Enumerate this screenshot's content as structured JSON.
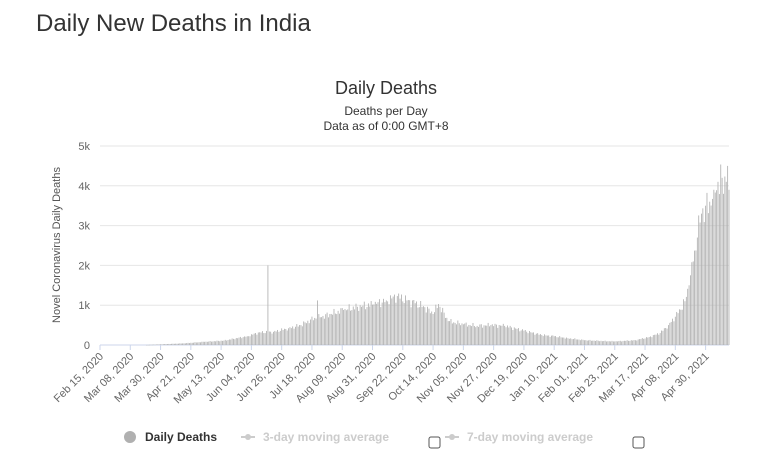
{
  "page": {
    "heading": "Daily New Deaths in India"
  },
  "chart_data": {
    "type": "bar",
    "title": "Daily Deaths",
    "subtitle_lines": [
      "Deaths per Day",
      "Data as of 0:00 GMT+8"
    ],
    "ylabel": "Novel Coronavirus Daily Deaths",
    "ylim": [
      0,
      5000
    ],
    "yticks": [
      0,
      1000,
      2000,
      3000,
      4000,
      5000
    ],
    "ytick_labels": [
      "0",
      "1k",
      "2k",
      "3k",
      "4k",
      "5k"
    ],
    "x_start": "2020-02-15",
    "x_end": "2021-05-17",
    "xtick_dates": [
      "2020-02-15",
      "2020-03-08",
      "2020-03-30",
      "2020-04-21",
      "2020-05-13",
      "2020-06-04",
      "2020-06-26",
      "2020-07-18",
      "2020-08-09",
      "2020-08-31",
      "2020-09-22",
      "2020-10-14",
      "2020-11-05",
      "2020-11-27",
      "2020-12-19",
      "2021-01-10",
      "2021-02-01",
      "2021-02-23",
      "2021-03-17",
      "2021-04-08",
      "2021-04-30"
    ],
    "xtick_labels": [
      "Feb 15, 2020",
      "Mar 08, 2020",
      "Mar 30, 2020",
      "Apr 21, 2020",
      "May 13, 2020",
      "Jun 04, 2020",
      "Jun 26, 2020",
      "Jul 18, 2020",
      "Aug 09, 2020",
      "Aug 31, 2020",
      "Sep 22, 2020",
      "Oct 14, 2020",
      "Nov 05, 2020",
      "Nov 27, 2020",
      "Dec 19, 2020",
      "Jan 10, 2021",
      "Feb 01, 2021",
      "Feb 23, 2021",
      "Mar 17, 2021",
      "Apr 08, 2021",
      "Apr 30, 2021"
    ],
    "series": [
      {
        "name": "Daily Deaths",
        "color": "#b0b0b0",
        "points": [
          [
            "2020-03-20",
            2
          ],
          [
            "2020-04-01",
            20
          ],
          [
            "2020-04-15",
            40
          ],
          [
            "2020-05-01",
            80
          ],
          [
            "2020-05-15",
            110
          ],
          [
            "2020-06-01",
            220
          ],
          [
            "2020-06-10",
            320
          ],
          [
            "2020-06-16",
            2000
          ],
          [
            "2020-06-20",
            330
          ],
          [
            "2020-07-01",
            420
          ],
          [
            "2020-07-10",
            500
          ],
          [
            "2020-07-20",
            680
          ],
          [
            "2020-07-22",
            1120
          ],
          [
            "2020-07-25",
            700
          ],
          [
            "2020-08-01",
            780
          ],
          [
            "2020-08-10",
            880
          ],
          [
            "2020-08-20",
            960
          ],
          [
            "2020-09-01",
            1020
          ],
          [
            "2020-09-10",
            1120
          ],
          [
            "2020-09-18",
            1230
          ],
          [
            "2020-09-25",
            1120
          ],
          [
            "2020-10-01",
            1050
          ],
          [
            "2020-10-08",
            950
          ],
          [
            "2020-10-14",
            780
          ],
          [
            "2020-10-18",
            1030
          ],
          [
            "2020-10-25",
            600
          ],
          [
            "2020-11-05",
            520
          ],
          [
            "2020-11-15",
            480
          ],
          [
            "2020-11-25",
            500
          ],
          [
            "2020-12-05",
            480
          ],
          [
            "2020-12-19",
            360
          ],
          [
            "2021-01-01",
            250
          ],
          [
            "2021-01-10",
            220
          ],
          [
            "2021-01-20",
            170
          ],
          [
            "2021-02-01",
            120
          ],
          [
            "2021-02-15",
            100
          ],
          [
            "2021-02-23",
            90
          ],
          [
            "2021-03-10",
            120
          ],
          [
            "2021-03-20",
            200
          ],
          [
            "2021-03-28",
            300
          ],
          [
            "2021-04-03",
            500
          ],
          [
            "2021-04-10",
            800
          ],
          [
            "2021-04-15",
            1100
          ],
          [
            "2021-04-18",
            1500
          ],
          [
            "2021-04-21",
            2100
          ],
          [
            "2021-04-24",
            2700
          ],
          [
            "2021-04-27",
            3300
          ],
          [
            "2021-04-30",
            3500
          ],
          [
            "2021-05-03",
            3600
          ],
          [
            "2021-05-06",
            3900
          ],
          [
            "2021-05-09",
            4100
          ],
          [
            "2021-05-12",
            4200
          ],
          [
            "2021-05-15",
            4100
          ],
          [
            "2021-05-16",
            4500
          ],
          [
            "2021-05-17",
            3900
          ]
        ]
      }
    ],
    "legend": {
      "placement": "bottom",
      "items": [
        {
          "label": "Daily Deaths",
          "active": true,
          "has_checkbox": false
        },
        {
          "label": "3-day moving average",
          "active": false,
          "has_checkbox": true
        },
        {
          "label": "7-day moving average",
          "active": false,
          "has_checkbox": true
        }
      ]
    }
  }
}
